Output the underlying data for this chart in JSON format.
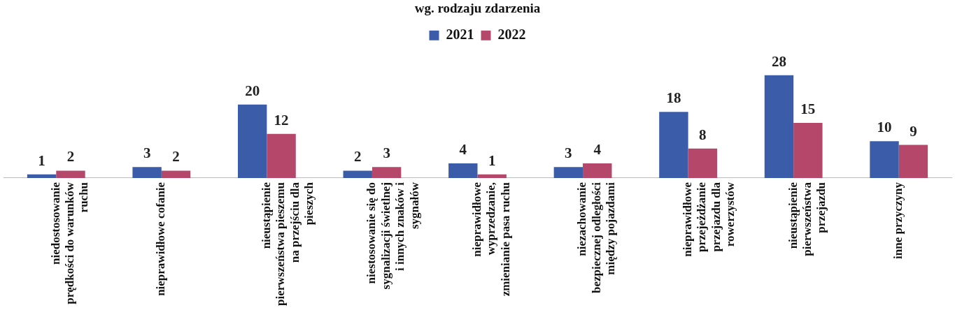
{
  "chart_data": {
    "type": "bar",
    "title": "wg. rodzaju zdarzenia",
    "categories": [
      "niedostosowanie prędkości do warunków ruchu",
      "nieprawidłowe cofanie",
      "nieustąpienie pierwszeństwa pieszemu na przejściu dla pieszych",
      "niestosowanie się do sygnalizacji świetlnej i innych znaków i sygnałów",
      "nieprawidłowe wyprzedzanie, zmienianie pasa ruchu",
      "niezachowanie bezpiecznej odległości między pojazdami",
      "nieprawidłowe przejeżdżanie przejazdu dla rowerzystów",
      "nieustąpienie pierwszeństwa przejazdu",
      "inne przyczyny"
    ],
    "series": [
      {
        "name": "2021",
        "color": "#3b5ca8",
        "values": [
          1,
          3,
          20,
          2,
          4,
          3,
          18,
          28,
          10
        ]
      },
      {
        "name": "2022",
        "color": "#b5476b",
        "values": [
          2,
          2,
          12,
          3,
          1,
          4,
          8,
          15,
          9
        ]
      }
    ],
    "data_labels": true,
    "legend": "top",
    "grid": false
  }
}
